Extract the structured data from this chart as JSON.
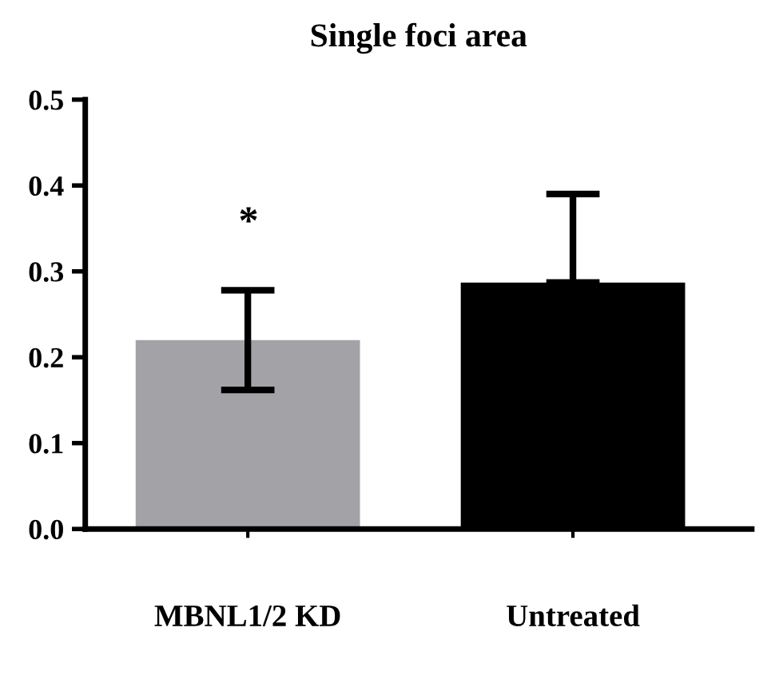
{
  "chart_data": {
    "type": "bar",
    "title": "Single foci area",
    "categories": [
      "MBNL1/2 KD",
      "Untreated"
    ],
    "values": [
      0.22,
      0.287
    ],
    "colors": [
      "#a3a2a7",
      "#000000"
    ],
    "errors": [
      0.058,
      [
        0.287,
        0.39
      ]
    ],
    "ylim": [
      0,
      0.5
    ],
    "yticks": [
      {
        "value": 0,
        "label": "0.0"
      },
      0.1,
      0.2,
      0.3,
      0.4,
      0.5
    ],
    "annotations": [
      "*"
    ],
    "grid": false,
    "legend": false
  }
}
